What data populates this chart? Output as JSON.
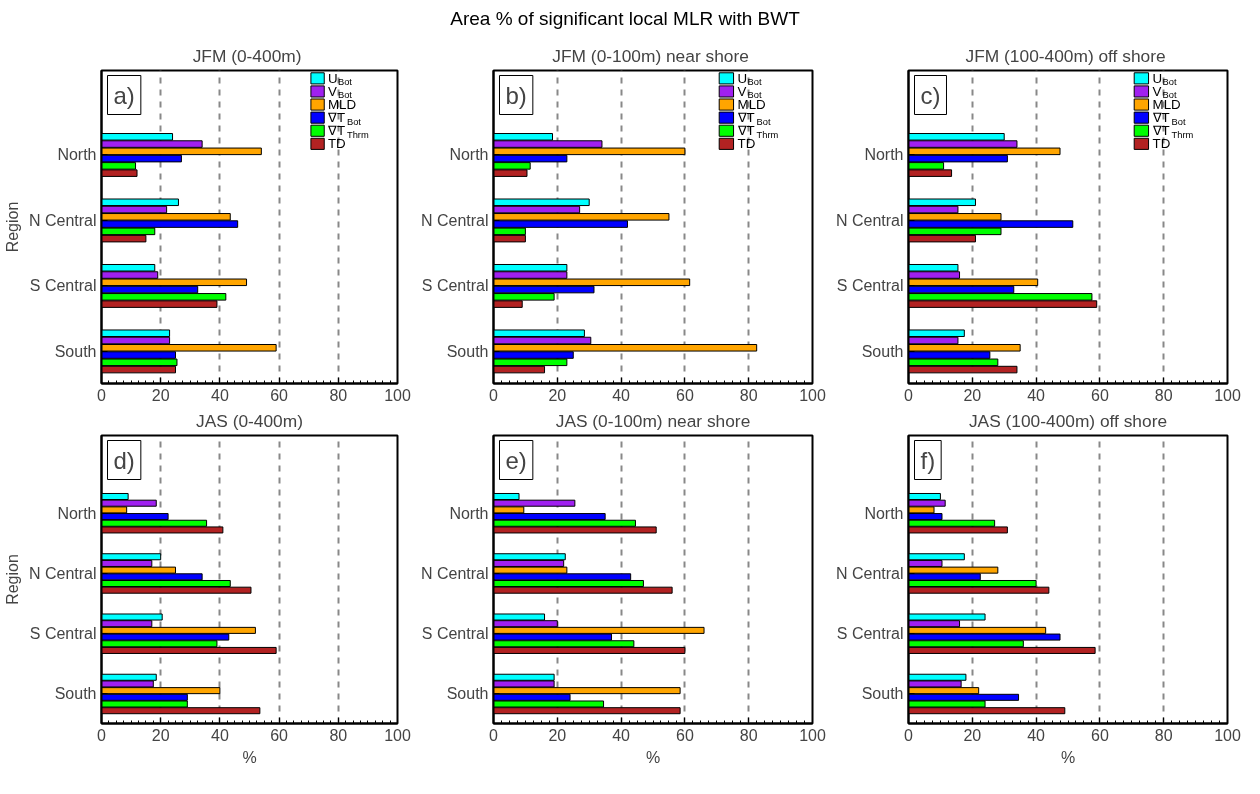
{
  "chart_data": [
    {
      "type": "bar",
      "orientation": "horizontal",
      "title": "JFM  (0-400m)",
      "ylabel": "Region",
      "annotations": [
        "Area % of significant local MLR with BWT",
        "a)"
      ],
      "categories": [
        "North",
        "N Central",
        "S Central",
        "South"
      ],
      "xlim": [
        0,
        100
      ],
      "xticks": [
        0,
        20,
        40,
        60,
        80,
        100
      ],
      "grid": "x",
      "legend": "top right",
      "series": [
        {
          "name": "U$_{Bot}$",
          "color": "#00ffff",
          "values": [
            24,
            26,
            18,
            23
          ]
        },
        {
          "name": "V$_{Bot}$",
          "color": "#a020f0",
          "values": [
            34,
            22,
            19,
            23
          ]
        },
        {
          "name": "MLD",
          "color": "#ffa500",
          "values": [
            54,
            43.5,
            49,
            59
          ]
        },
        {
          "name": "∇T$_{Bot}$",
          "color": "#0000ff",
          "values": [
            27,
            46,
            32.5,
            25
          ]
        },
        {
          "name": "∇T$_{Thrm}$",
          "color": "#00ff00",
          "values": [
            11.5,
            18,
            42,
            25.5
          ]
        },
        {
          "name": "TD",
          "color": "#b22222",
          "values": [
            12,
            15,
            39,
            25
          ]
        }
      ]
    },
    {
      "type": "bar",
      "orientation": "horizontal",
      "title": "JFM  (0-100m) near shore",
      "annotations": [
        "b)"
      ],
      "categories": [
        "North",
        "N Central",
        "S Central",
        "South"
      ],
      "xlim": [
        0,
        100
      ],
      "xticks": [
        0,
        20,
        40,
        60,
        80,
        100
      ],
      "grid": "x",
      "legend": "top right",
      "series": [
        {
          "name": "U$_{Bot}$",
          "color": "#00ffff",
          "values": [
            18.5,
            30,
            23,
            28.5
          ]
        },
        {
          "name": "V$_{Bot}$",
          "color": "#a020f0",
          "values": [
            34,
            27,
            23,
            30.5
          ]
        },
        {
          "name": "MLD",
          "color": "#ffa500",
          "values": [
            60,
            55,
            61.5,
            82.5
          ]
        },
        {
          "name": "∇T$_{Bot}$",
          "color": "#0000ff",
          "values": [
            23,
            42,
            31.5,
            25
          ]
        },
        {
          "name": "∇T$_{Thrm}$",
          "color": "#00ff00",
          "values": [
            11.5,
            10,
            19,
            23
          ]
        },
        {
          "name": "TD",
          "color": "#b22222",
          "values": [
            10.5,
            10,
            9,
            16
          ]
        }
      ]
    },
    {
      "type": "bar",
      "orientation": "horizontal",
      "title": "JFM  (100-400m) off shore",
      "annotations": [
        "c)"
      ],
      "categories": [
        "North",
        "N Central",
        "S Central",
        "South"
      ],
      "xlim": [
        0,
        100
      ],
      "xticks": [
        0,
        20,
        40,
        60,
        80,
        100
      ],
      "grid": "x",
      "legend": "top right",
      "series": [
        {
          "name": "U$_{Bot}$",
          "color": "#00ffff",
          "values": [
            30,
            21,
            15.5,
            17.5
          ]
        },
        {
          "name": "V$_{Bot}$",
          "color": "#a020f0",
          "values": [
            34,
            15.5,
            16,
            15.5
          ]
        },
        {
          "name": "MLD",
          "color": "#ffa500",
          "values": [
            47.5,
            29,
            40.5,
            35
          ]
        },
        {
          "name": "∇T$_{Bot}$",
          "color": "#0000ff",
          "values": [
            31,
            51.5,
            33,
            25.5
          ]
        },
        {
          "name": "∇T$_{Thrm}$",
          "color": "#00ff00",
          "values": [
            11,
            29,
            57.5,
            28
          ]
        },
        {
          "name": "TD",
          "color": "#b22222",
          "values": [
            13.5,
            21,
            59,
            34
          ]
        }
      ]
    },
    {
      "type": "bar",
      "orientation": "horizontal",
      "title": "JAS (0-400m)",
      "ylabel": "Region",
      "xlabel": "%",
      "annotations": [
        "d)"
      ],
      "categories": [
        "North",
        "N Central",
        "S Central",
        "South"
      ],
      "xlim": [
        0,
        100
      ],
      "xticks": [
        0,
        20,
        40,
        60,
        80,
        100
      ],
      "grid": "x",
      "series": [
        {
          "color": "#00ffff",
          "values": [
            9,
            20,
            20.5,
            18.5
          ]
        },
        {
          "color": "#a020f0",
          "values": [
            18.5,
            17,
            17,
            17.5
          ]
        },
        {
          "color": "#ffa500",
          "values": [
            8.5,
            25,
            52,
            40
          ]
        },
        {
          "color": "#0000ff",
          "values": [
            22.5,
            34,
            43,
            29
          ]
        },
        {
          "color": "#00ff00",
          "values": [
            35.5,
            43.5,
            39,
            29
          ]
        },
        {
          "color": "#b22222",
          "values": [
            41,
            50.5,
            59,
            53.5
          ]
        }
      ]
    },
    {
      "type": "bar",
      "orientation": "horizontal",
      "title": "JAS (0-100m) near shore",
      "xlabel": "%",
      "annotations": [
        "e)"
      ],
      "categories": [
        "North",
        "N Central",
        "S Central",
        "South"
      ],
      "xlim": [
        0,
        100
      ],
      "xticks": [
        0,
        20,
        40,
        60,
        80,
        100
      ],
      "grid": "x",
      "series": [
        {
          "color": "#00ffff",
          "values": [
            8,
            22.5,
            16,
            19
          ]
        },
        {
          "color": "#a020f0",
          "values": [
            25.5,
            22,
            20,
            19
          ]
        },
        {
          "color": "#ffa500",
          "values": [
            9.5,
            23,
            66,
            58.5
          ]
        },
        {
          "color": "#0000ff",
          "values": [
            35,
            43,
            37,
            24
          ]
        },
        {
          "color": "#00ff00",
          "values": [
            44.5,
            47,
            44,
            34.5
          ]
        },
        {
          "color": "#b22222",
          "values": [
            51,
            56,
            60,
            58.5
          ]
        }
      ]
    },
    {
      "type": "bar",
      "orientation": "horizontal",
      "title": "JAS (100-400m) off shore",
      "xlabel": "%",
      "annotations": [
        "f)"
      ],
      "categories": [
        "North",
        "N Central",
        "S Central",
        "South"
      ],
      "xlim": [
        0,
        100
      ],
      "xticks": [
        0,
        20,
        40,
        60,
        80,
        100
      ],
      "grid": "x",
      "series": [
        {
          "color": "#00ffff",
          "values": [
            10,
            17.5,
            24,
            18
          ]
        },
        {
          "color": "#a020f0",
          "values": [
            11.5,
            10.5,
            16,
            16.5
          ]
        },
        {
          "color": "#ffa500",
          "values": [
            8,
            28,
            43,
            22
          ]
        },
        {
          "color": "#0000ff",
          "values": [
            10.5,
            22.5,
            47.5,
            34.5
          ]
        },
        {
          "color": "#00ff00",
          "values": [
            27,
            40,
            36,
            24
          ]
        },
        {
          "color": "#b22222",
          "values": [
            31,
            44,
            58.5,
            49
          ]
        }
      ]
    }
  ]
}
